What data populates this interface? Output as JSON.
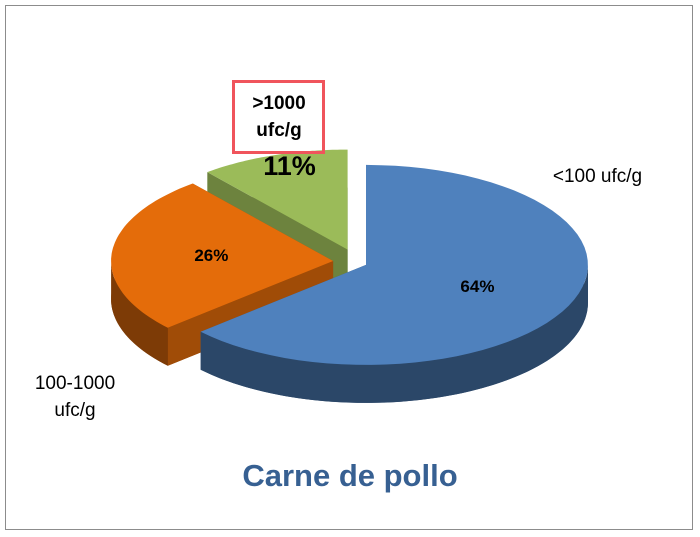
{
  "chart_data": {
    "type": "pie",
    "title": "Carne de pollo",
    "categories": [
      "<100 ufc/g",
      "100-1000 ufc/g",
      ">1000 ufc/g"
    ],
    "values": [
      64,
      26,
      11
    ],
    "value_labels": [
      "64%",
      "26%",
      "11%"
    ],
    "colors": [
      "#4f81bd",
      "#e46c0a",
      "#9bbb59"
    ]
  }
}
